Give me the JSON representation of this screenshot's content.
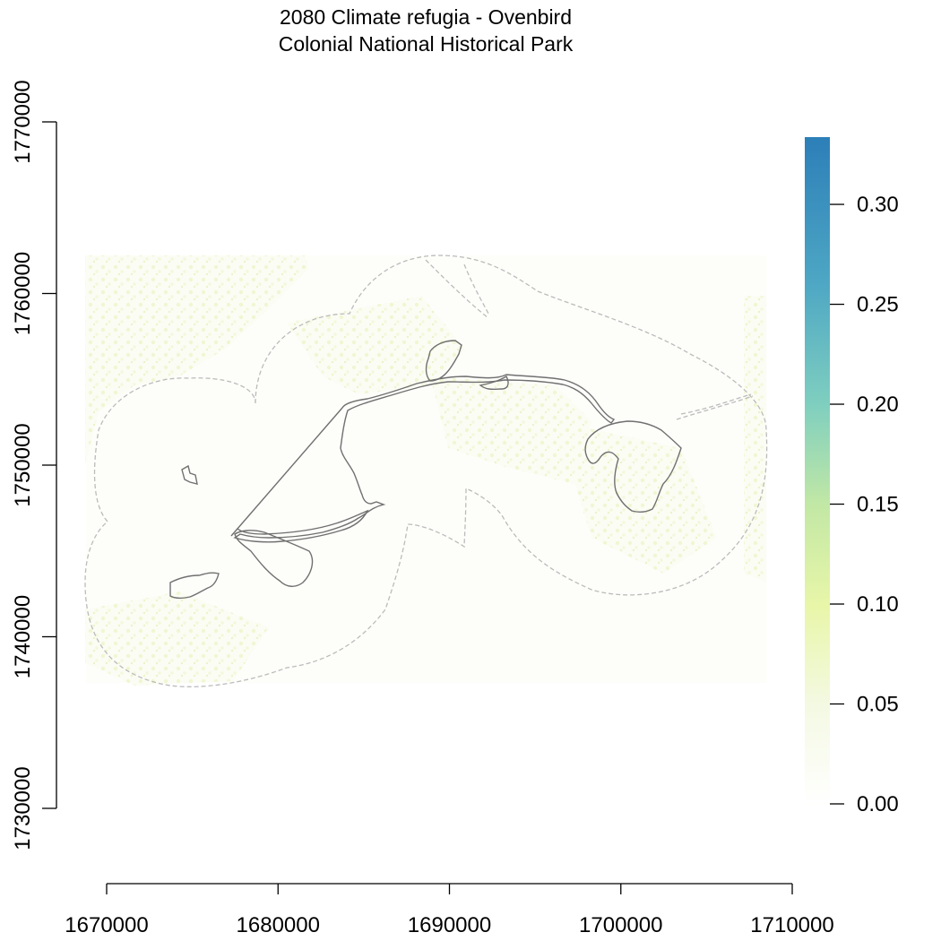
{
  "title": {
    "line1": "2080 Climate refugia - Ovenbird",
    "line2": "Colonial National Historical Park"
  },
  "map": {
    "x_axis": {
      "ticks": [
        "1670000",
        "1680000",
        "1690000",
        "1700000",
        "1710000"
      ],
      "range": [
        1670000,
        1710000
      ]
    },
    "y_axis": {
      "ticks": [
        "1730000",
        "1740000",
        "1750000",
        "1760000",
        "1770000"
      ],
      "range": [
        1730000,
        1770000
      ]
    },
    "raster_extent": {
      "x": [
        1668800,
        1708500
      ],
      "y": [
        1737300,
        1762200
      ]
    },
    "layers": [
      "refugia-raster",
      "buffer-outline",
      "park-boundary"
    ],
    "colors": {
      "buffer_outline": "#bbbbbb",
      "park_boundary": "#707070",
      "raster_low": "#f0f6d6"
    }
  },
  "legend": {
    "labels": [
      "0.00",
      "0.05",
      "0.10",
      "0.15",
      "0.20",
      "0.25",
      "0.30"
    ],
    "values": [
      0.0,
      0.05,
      0.1,
      0.15,
      0.2,
      0.25,
      0.3
    ],
    "max": 0.335,
    "colors": [
      "#ffffff",
      "#f4f9e3",
      "#e8f6a8",
      "#c2e8a5",
      "#7fcfbf",
      "#4ea7c4",
      "#2c7fb8"
    ]
  }
}
